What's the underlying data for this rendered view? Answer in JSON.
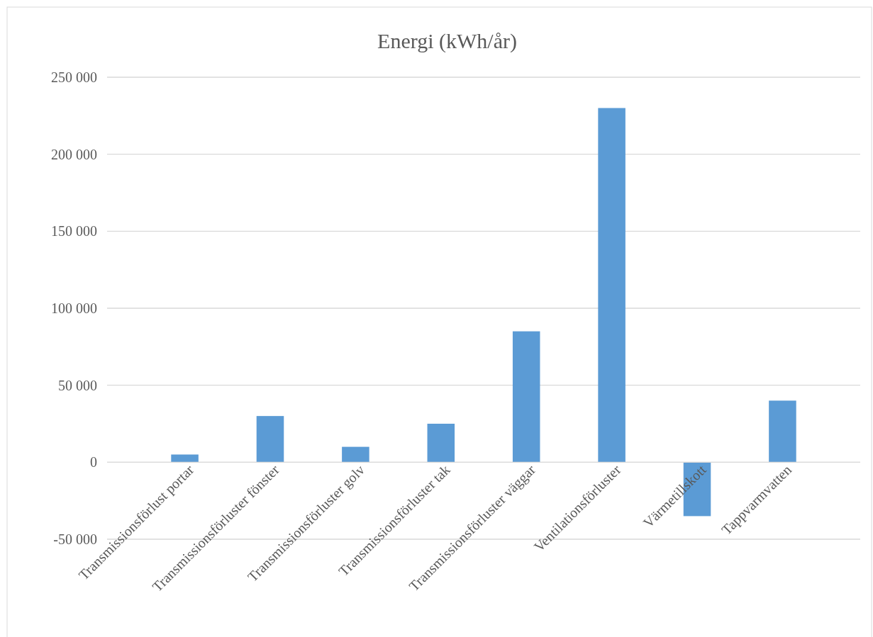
{
  "chart_data": {
    "type": "bar",
    "title": "Energi (kWh/år)",
    "categories": [
      "Transmissionsförlust portar",
      "Transmissionsförluster fönster",
      "Transmissionsförluster golv",
      "Transmissionsförluster tak",
      "Transmissionsförluster väggar",
      "Ventilationsförluster",
      "Värmetillskott",
      "Tappvarmvatten"
    ],
    "values": [
      5000,
      30000,
      10000,
      25000,
      85000,
      230000,
      -35000,
      40000
    ],
    "color": "#5b9bd5",
    "ylim": [
      -50000,
      250000
    ],
    "yticks": [
      {
        "value": -50000,
        "label": "-50 000"
      },
      {
        "value": 0,
        "label": "0"
      },
      {
        "value": 50000,
        "label": "50 000"
      },
      {
        "value": 100000,
        "label": "100 000"
      },
      {
        "value": 150000,
        "label": "150 000"
      },
      {
        "value": 200000,
        "label": "200 000"
      },
      {
        "value": 250000,
        "label": "250 000"
      }
    ],
    "grid": "y"
  }
}
